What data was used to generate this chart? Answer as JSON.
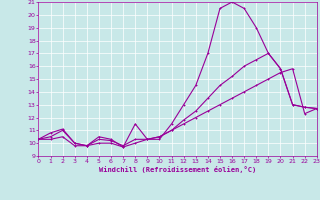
{
  "xlabel": "Windchill (Refroidissement éolien,°C)",
  "xlim": [
    0,
    23
  ],
  "ylim": [
    9,
    21
  ],
  "xticks": [
    0,
    1,
    2,
    3,
    4,
    5,
    6,
    7,
    8,
    9,
    10,
    11,
    12,
    13,
    14,
    15,
    16,
    17,
    18,
    19,
    20,
    21,
    22,
    23
  ],
  "yticks": [
    9,
    10,
    11,
    12,
    13,
    14,
    15,
    16,
    17,
    18,
    19,
    20,
    21
  ],
  "bg_color": "#c8e8e8",
  "line_color": "#990099",
  "grid_color": "#b0d8d8",
  "line1_x": [
    0,
    1,
    2,
    3,
    4,
    5,
    6,
    7,
    8,
    9,
    10,
    11,
    12,
    13,
    14,
    15,
    16,
    17,
    18,
    19,
    20,
    21,
    22,
    23
  ],
  "line1_y": [
    10.3,
    10.8,
    11.1,
    10.0,
    9.8,
    10.5,
    10.3,
    9.7,
    11.5,
    10.3,
    10.3,
    11.5,
    13.0,
    14.5,
    17.0,
    20.5,
    21.0,
    20.5,
    19.0,
    17.0,
    15.8,
    13.0,
    12.8,
    12.7
  ],
  "line2_x": [
    0,
    1,
    2,
    3,
    4,
    5,
    6,
    7,
    8,
    9,
    10,
    11,
    12,
    13,
    14,
    15,
    16,
    17,
    18,
    19,
    20,
    21,
    22,
    23
  ],
  "line2_y": [
    10.3,
    10.5,
    11.0,
    10.0,
    9.8,
    10.3,
    10.2,
    9.8,
    10.3,
    10.3,
    10.5,
    11.0,
    11.8,
    12.5,
    13.5,
    14.5,
    15.2,
    16.0,
    16.5,
    17.0,
    15.8,
    13.0,
    12.8,
    12.7
  ],
  "line3_x": [
    0,
    1,
    2,
    3,
    4,
    5,
    6,
    7,
    8,
    9,
    10,
    11,
    12,
    13,
    14,
    15,
    16,
    17,
    18,
    19,
    20,
    21,
    22,
    23
  ],
  "line3_y": [
    10.3,
    10.3,
    10.5,
    9.8,
    9.8,
    10.0,
    10.0,
    9.7,
    10.0,
    10.3,
    10.5,
    11.0,
    11.5,
    12.0,
    12.5,
    13.0,
    13.5,
    14.0,
    14.5,
    15.0,
    15.5,
    15.8,
    12.3,
    12.7
  ]
}
